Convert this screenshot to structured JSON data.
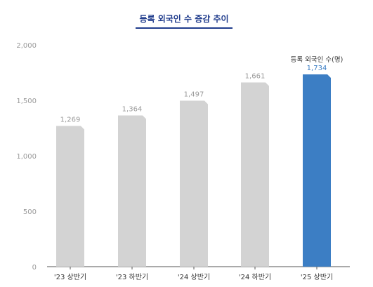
{
  "chart_data": {
    "type": "bar",
    "title": "등록 외국인 수 증감 추이",
    "categories": [
      "'23 상반기",
      "'23 하반기",
      "'24 상반기",
      "'24 하반기",
      "'25 상반기"
    ],
    "values": [
      1269,
      1364,
      1497,
      1661,
      1734
    ],
    "value_labels": [
      "1,269",
      "1,364",
      "1,497",
      "1,661",
      "1,734"
    ],
    "highlight_index": 4,
    "annotation": "등록 외국인 수(명)",
    "ylim": [
      0,
      2000
    ],
    "yticks": [
      0,
      500,
      1000,
      1500,
      2000
    ],
    "ytick_labels": [
      "0",
      "500",
      "1,000",
      "1,500",
      "2,000"
    ],
    "xlabel": "",
    "ylabel": "",
    "grid": false,
    "colors": {
      "bar": "#d3d3d3",
      "highlight_bar": "#3c7ec4",
      "value_label": "#9a9a9a",
      "highlight_label": "#3c7ec4",
      "title_text": "#1f3b8c",
      "title_line": "#1f3b8c",
      "axis": "#555555",
      "tick_label": "#9a9a9a",
      "category_label": "#333333"
    }
  }
}
